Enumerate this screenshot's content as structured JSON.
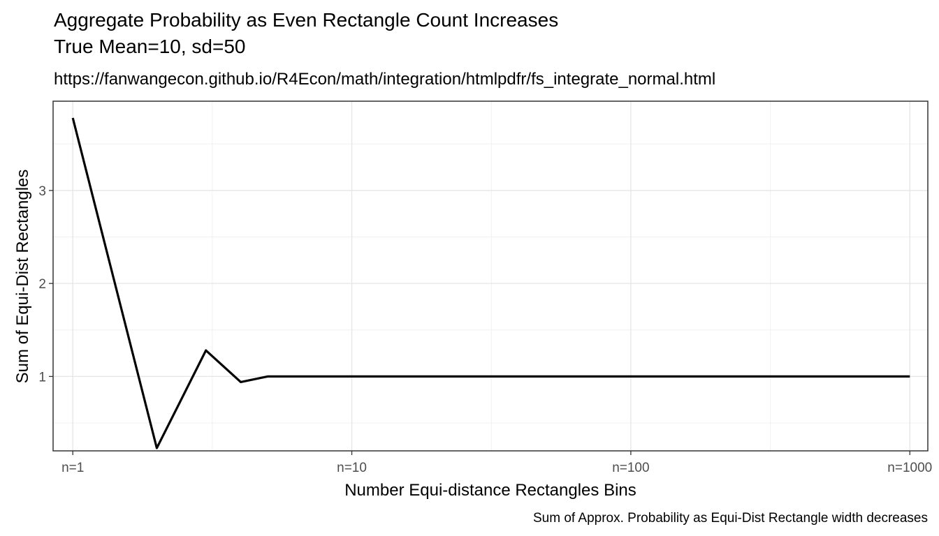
{
  "title_line1": "Aggregate Probability as Even Rectangle Count Increases",
  "title_line2": "True Mean=10, sd=50",
  "subtitle": "https://fanwangecon.github.io/R4Econ/math/integration/htmlpdfr/fs_integrate_normal.html",
  "caption": "Sum of Approx. Probability as Equi-Dist Rectangle width decreases",
  "chart_data": {
    "type": "line",
    "title": "Aggregate Probability as Even Rectangle Count Increases\nTrue Mean=10, sd=50",
    "subtitle": "https://fanwangecon.github.io/R4Econ/math/integration/htmlpdfr/fs_integrate_normal.html",
    "caption": "Sum of Approx. Probability as Equi-Dist Rectangle width decreases",
    "xlabel": "Number Equi-distance Rectangles Bins",
    "ylabel": "Sum of Equi-Dist Rectangles",
    "x_scale": "log10",
    "x_ticks": [
      {
        "value": 1,
        "label": "n=1"
      },
      {
        "value": 10,
        "label": "n=10"
      },
      {
        "value": 100,
        "label": "n=100"
      },
      {
        "value": 1000,
        "label": "n=1000"
      }
    ],
    "y_ticks": [
      1,
      2,
      3
    ],
    "xlim": [
      0.85,
      1160
    ],
    "ylim": [
      0.2,
      3.96
    ],
    "grid": true,
    "legend": "none",
    "series": [
      {
        "color": "#000000",
        "x": [
          1,
          2,
          3,
          4,
          5,
          6,
          7,
          8,
          9,
          10,
          20,
          50,
          100,
          200,
          500,
          1000
        ],
        "y": [
          3.78,
          0.23,
          1.28,
          0.94,
          1.0,
          1.0,
          1.0,
          1.0,
          1.0,
          1.0,
          1.0,
          1.0,
          1.0,
          1.0,
          1.0,
          1.0
        ]
      }
    ]
  }
}
